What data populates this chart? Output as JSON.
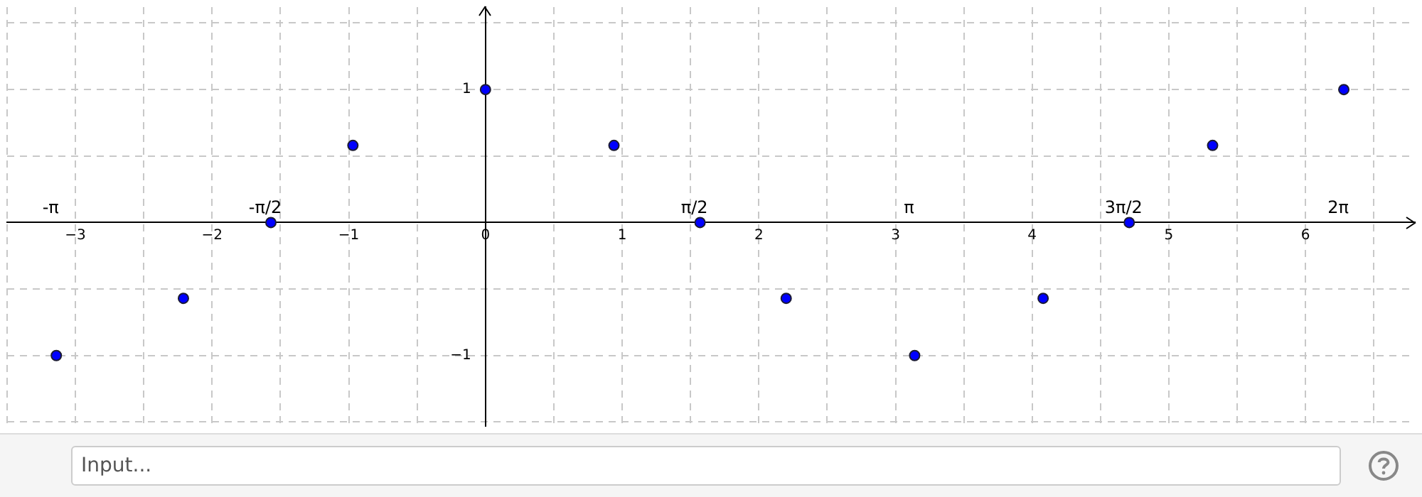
{
  "chart_data": {
    "type": "scatter",
    "x": [
      -3.14,
      -2.21,
      -1.57,
      -0.97,
      0,
      0.94,
      1.57,
      2.2,
      3.14,
      4.08,
      4.71,
      5.32,
      6.28
    ],
    "values": [
      -1,
      -0.57,
      0,
      0.58,
      1,
      0.58,
      0,
      -0.57,
      -1,
      -0.57,
      0,
      0.58,
      1
    ],
    "color": "#0000ff",
    "marker": "circle",
    "grid": true,
    "legend": false,
    "xlim": [
      -3.5,
      6.8
    ],
    "ylim": [
      -1.53,
      1.62
    ],
    "xticks": [
      {
        "value": -3.5,
        "label": null
      },
      -3,
      {
        "value": -2.5,
        "label": null
      },
      -2,
      {
        "value": -1.5,
        "label": null
      },
      -1,
      {
        "value": -0.5,
        "label": null
      },
      0,
      {
        "value": 0.5,
        "label": null
      },
      1,
      {
        "value": 1.5,
        "label": null
      },
      2,
      {
        "value": 2.5,
        "label": null
      },
      3,
      {
        "value": 3.5,
        "label": null
      },
      4,
      {
        "value": 4.5,
        "label": null
      },
      5,
      {
        "value": 5.5,
        "label": null
      },
      6,
      {
        "value": 6.5,
        "label": null
      }
    ],
    "yticks": [
      {
        "value": -1.5,
        "label": null
      },
      -1,
      {
        "value": -0.5,
        "label": null
      },
      {
        "value": 0,
        "label": null
      },
      {
        "value": 0.5,
        "label": null
      },
      1,
      {
        "value": 1.5,
        "label": null
      }
    ],
    "x2lim": [
      -3.5,
      6.8
    ],
    "x2ticks": [
      {
        "value": -3.14,
        "label": "-π"
      },
      {
        "value": -1.57,
        "label": "-π/2"
      },
      {
        "value": 1.57,
        "label": "π/2"
      },
      {
        "value": 3.14,
        "label": "π"
      },
      {
        "value": 4.71,
        "label": "3π/2"
      },
      {
        "value": 6.28,
        "label": "2π"
      }
    ],
    "annotations": [
      "Input..."
    ]
  }
}
